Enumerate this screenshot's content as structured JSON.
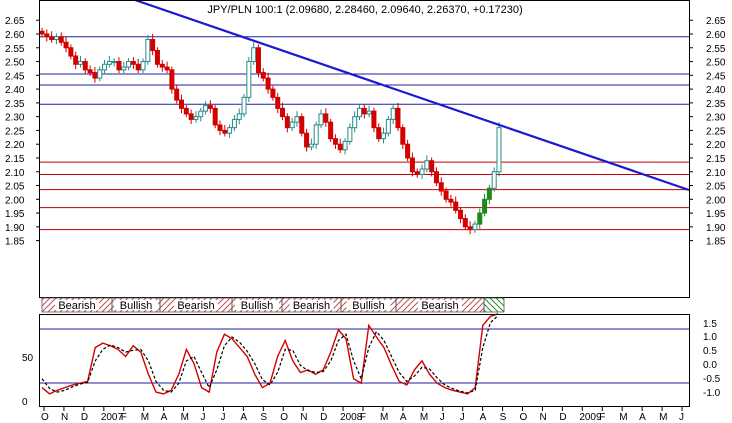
{
  "title": "JPY/PLN 100:1 (2.09680, 2.28460, 2.09640, 2.26370, +0.17230)",
  "colors": {
    "up": "#2a8a8a",
    "down": "#d40000",
    "up_big": "#1e8a1e",
    "trendline": "#1a1ad0",
    "blue_level": "#2020a0",
    "red_level": "#c00000",
    "stoch_k": "#d40000",
    "stoch_d": "#000000",
    "stoch_ref": "#2020a0",
    "hatch": "#c05050",
    "hatch_bull": "#2a8a2a"
  },
  "chart_data": [
    {
      "type": "candlestick",
      "title": "JPY/PLN 100:1 (2.09680, 2.28460, 2.09640, 2.26370, +0.17230)",
      "ylim": [
        1.83,
        2.68
      ],
      "y_ticks": [
        "2.65",
        "2.60",
        "2.55",
        "2.50",
        "2.45",
        "2.40",
        "2.35",
        "2.30",
        "2.25",
        "2.20",
        "2.15",
        "2.10",
        "2.05",
        "2.00",
        "1.95",
        "1.90",
        "1.85"
      ],
      "x_ticks": [
        "O",
        "N",
        "D",
        "2007",
        "F",
        "M",
        "A",
        "M",
        "J",
        "J",
        "A",
        "S",
        "O",
        "N",
        "D",
        "2008",
        "F",
        "M",
        "A",
        "M",
        "J",
        "J",
        "A",
        "S",
        "O",
        "N",
        "D",
        "2009",
        "F",
        "M",
        "A",
        "M",
        "J"
      ],
      "horizontal_levels_blue": [
        2.59,
        2.455,
        2.415,
        2.345
      ],
      "horizontal_levels_red": [
        2.135,
        2.09,
        2.035,
        1.97,
        1.89
      ],
      "trendline": {
        "from": [
          "2006-05",
          2.75
        ],
        "to": [
          "2009-07",
          2.1
        ]
      },
      "closes": [
        2.6,
        2.59,
        2.58,
        2.59,
        2.57,
        2.55,
        2.52,
        2.49,
        2.5,
        2.47,
        2.46,
        2.44,
        2.47,
        2.49,
        2.5,
        2.5,
        2.47,
        2.48,
        2.5,
        2.49,
        2.47,
        2.5,
        2.58,
        2.54,
        2.49,
        2.48,
        2.47,
        2.4,
        2.36,
        2.33,
        2.31,
        2.29,
        2.3,
        2.32,
        2.34,
        2.33,
        2.27,
        2.25,
        2.24,
        2.26,
        2.29,
        2.31,
        2.37,
        2.5,
        2.55,
        2.46,
        2.44,
        2.4,
        2.37,
        2.33,
        2.3,
        2.26,
        2.28,
        2.3,
        2.24,
        2.19,
        2.2,
        2.27,
        2.31,
        2.28,
        2.22,
        2.2,
        2.18,
        2.21,
        2.26,
        2.3,
        2.33,
        2.31,
        2.32,
        2.26,
        2.22,
        2.24,
        2.29,
        2.33,
        2.26,
        2.2,
        2.15,
        2.1,
        2.09,
        2.11,
        2.14,
        2.1,
        2.06,
        2.03,
        2.0,
        1.99,
        1.96,
        1.93,
        1.9,
        1.89,
        1.91,
        1.95,
        2.0,
        2.04,
        2.1,
        2.26
      ],
      "bearish_bullish_bands": [
        "Bearish",
        "Bullish",
        "Bearish",
        "Bullish",
        "Bearish",
        "Bullish",
        "Bearish",
        ""
      ],
      "stochastic": {
        "y_ticks_left": [
          "50",
          "0"
        ],
        "y_ticks_right": [
          "1.5",
          "1.0",
          "0.5",
          "0.0",
          "-0.5",
          "-1.0"
        ],
        "k": [
          15,
          8,
          12,
          15,
          18,
          20,
          22,
          60,
          65,
          62,
          58,
          50,
          62,
          55,
          30,
          10,
          8,
          12,
          30,
          58,
          42,
          15,
          10,
          55,
          75,
          70,
          60,
          50,
          30,
          15,
          20,
          50,
          68,
          45,
          32,
          35,
          30,
          35,
          55,
          80,
          70,
          25,
          20,
          85,
          72,
          60,
          40,
          22,
          18,
          35,
          45,
          30,
          20,
          15,
          12,
          10,
          8,
          15,
          85,
          95,
          98
        ],
        "d": [
          25,
          14,
          10,
          12,
          16,
          19,
          21,
          45,
          58,
          63,
          60,
          55,
          57,
          58,
          45,
          22,
          12,
          10,
          20,
          45,
          50,
          32,
          15,
          35,
          62,
          72,
          66,
          56,
          42,
          24,
          18,
          32,
          58,
          57,
          40,
          34,
          32,
          33,
          45,
          68,
          75,
          45,
          25,
          60,
          78,
          68,
          50,
          32,
          22,
          28,
          38,
          36,
          26,
          18,
          14,
          11,
          9,
          12,
          60,
          88,
          96
        ]
      }
    }
  ]
}
